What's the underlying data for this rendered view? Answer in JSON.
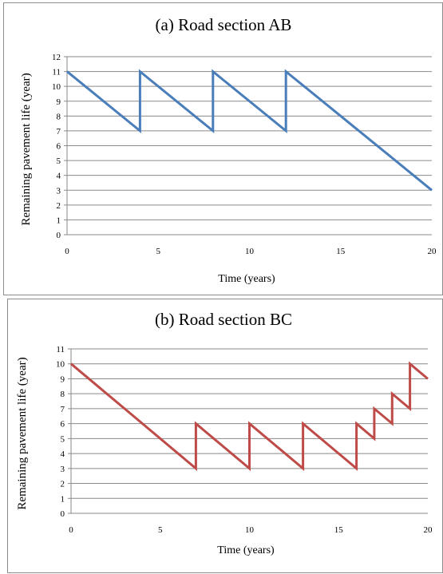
{
  "chart_data": [
    {
      "type": "line",
      "title": "(a) Road section AB",
      "xlabel": "Time (years)",
      "ylabel": "Remaining pavement life (year)",
      "xlim": [
        0,
        20
      ],
      "ylim": [
        0,
        12
      ],
      "x_ticks": [
        0,
        5,
        10,
        15,
        20
      ],
      "y_ticks": [
        0,
        1,
        2,
        3,
        4,
        5,
        6,
        7,
        8,
        9,
        10,
        11,
        12
      ],
      "grid": true,
      "color": "#4a7ebb",
      "series": [
        {
          "points": [
            [
              0,
              11
            ],
            [
              4,
              7
            ],
            [
              4,
              11
            ],
            [
              8,
              7
            ],
            [
              8,
              11
            ],
            [
              12,
              7
            ],
            [
              12,
              11
            ],
            [
              15,
              8
            ],
            [
              20,
              3
            ]
          ]
        }
      ]
    },
    {
      "type": "line",
      "title": "(b) Road section BC",
      "xlabel": "Time (years)",
      "ylabel": "Remaining pavement life (year)",
      "xlim": [
        0,
        20
      ],
      "ylim": [
        0,
        11
      ],
      "x_ticks": [
        0,
        5,
        10,
        15,
        20
      ],
      "y_ticks": [
        0,
        1,
        2,
        3,
        4,
        5,
        6,
        7,
        8,
        9,
        10,
        11
      ],
      "grid": true,
      "color": "#be4b48",
      "series": [
        {
          "points": [
            [
              0,
              10
            ],
            [
              3,
              7
            ],
            [
              7,
              3
            ],
            [
              7,
              6
            ],
            [
              10,
              3
            ],
            [
              10,
              6
            ],
            [
              13,
              3
            ],
            [
              13,
              6
            ],
            [
              16,
              3
            ],
            [
              16,
              6
            ],
            [
              17,
              5
            ],
            [
              17,
              7
            ],
            [
              18,
              6
            ],
            [
              18,
              8
            ],
            [
              19,
              7
            ],
            [
              19,
              10
            ],
            [
              20,
              9
            ]
          ]
        }
      ]
    }
  ]
}
